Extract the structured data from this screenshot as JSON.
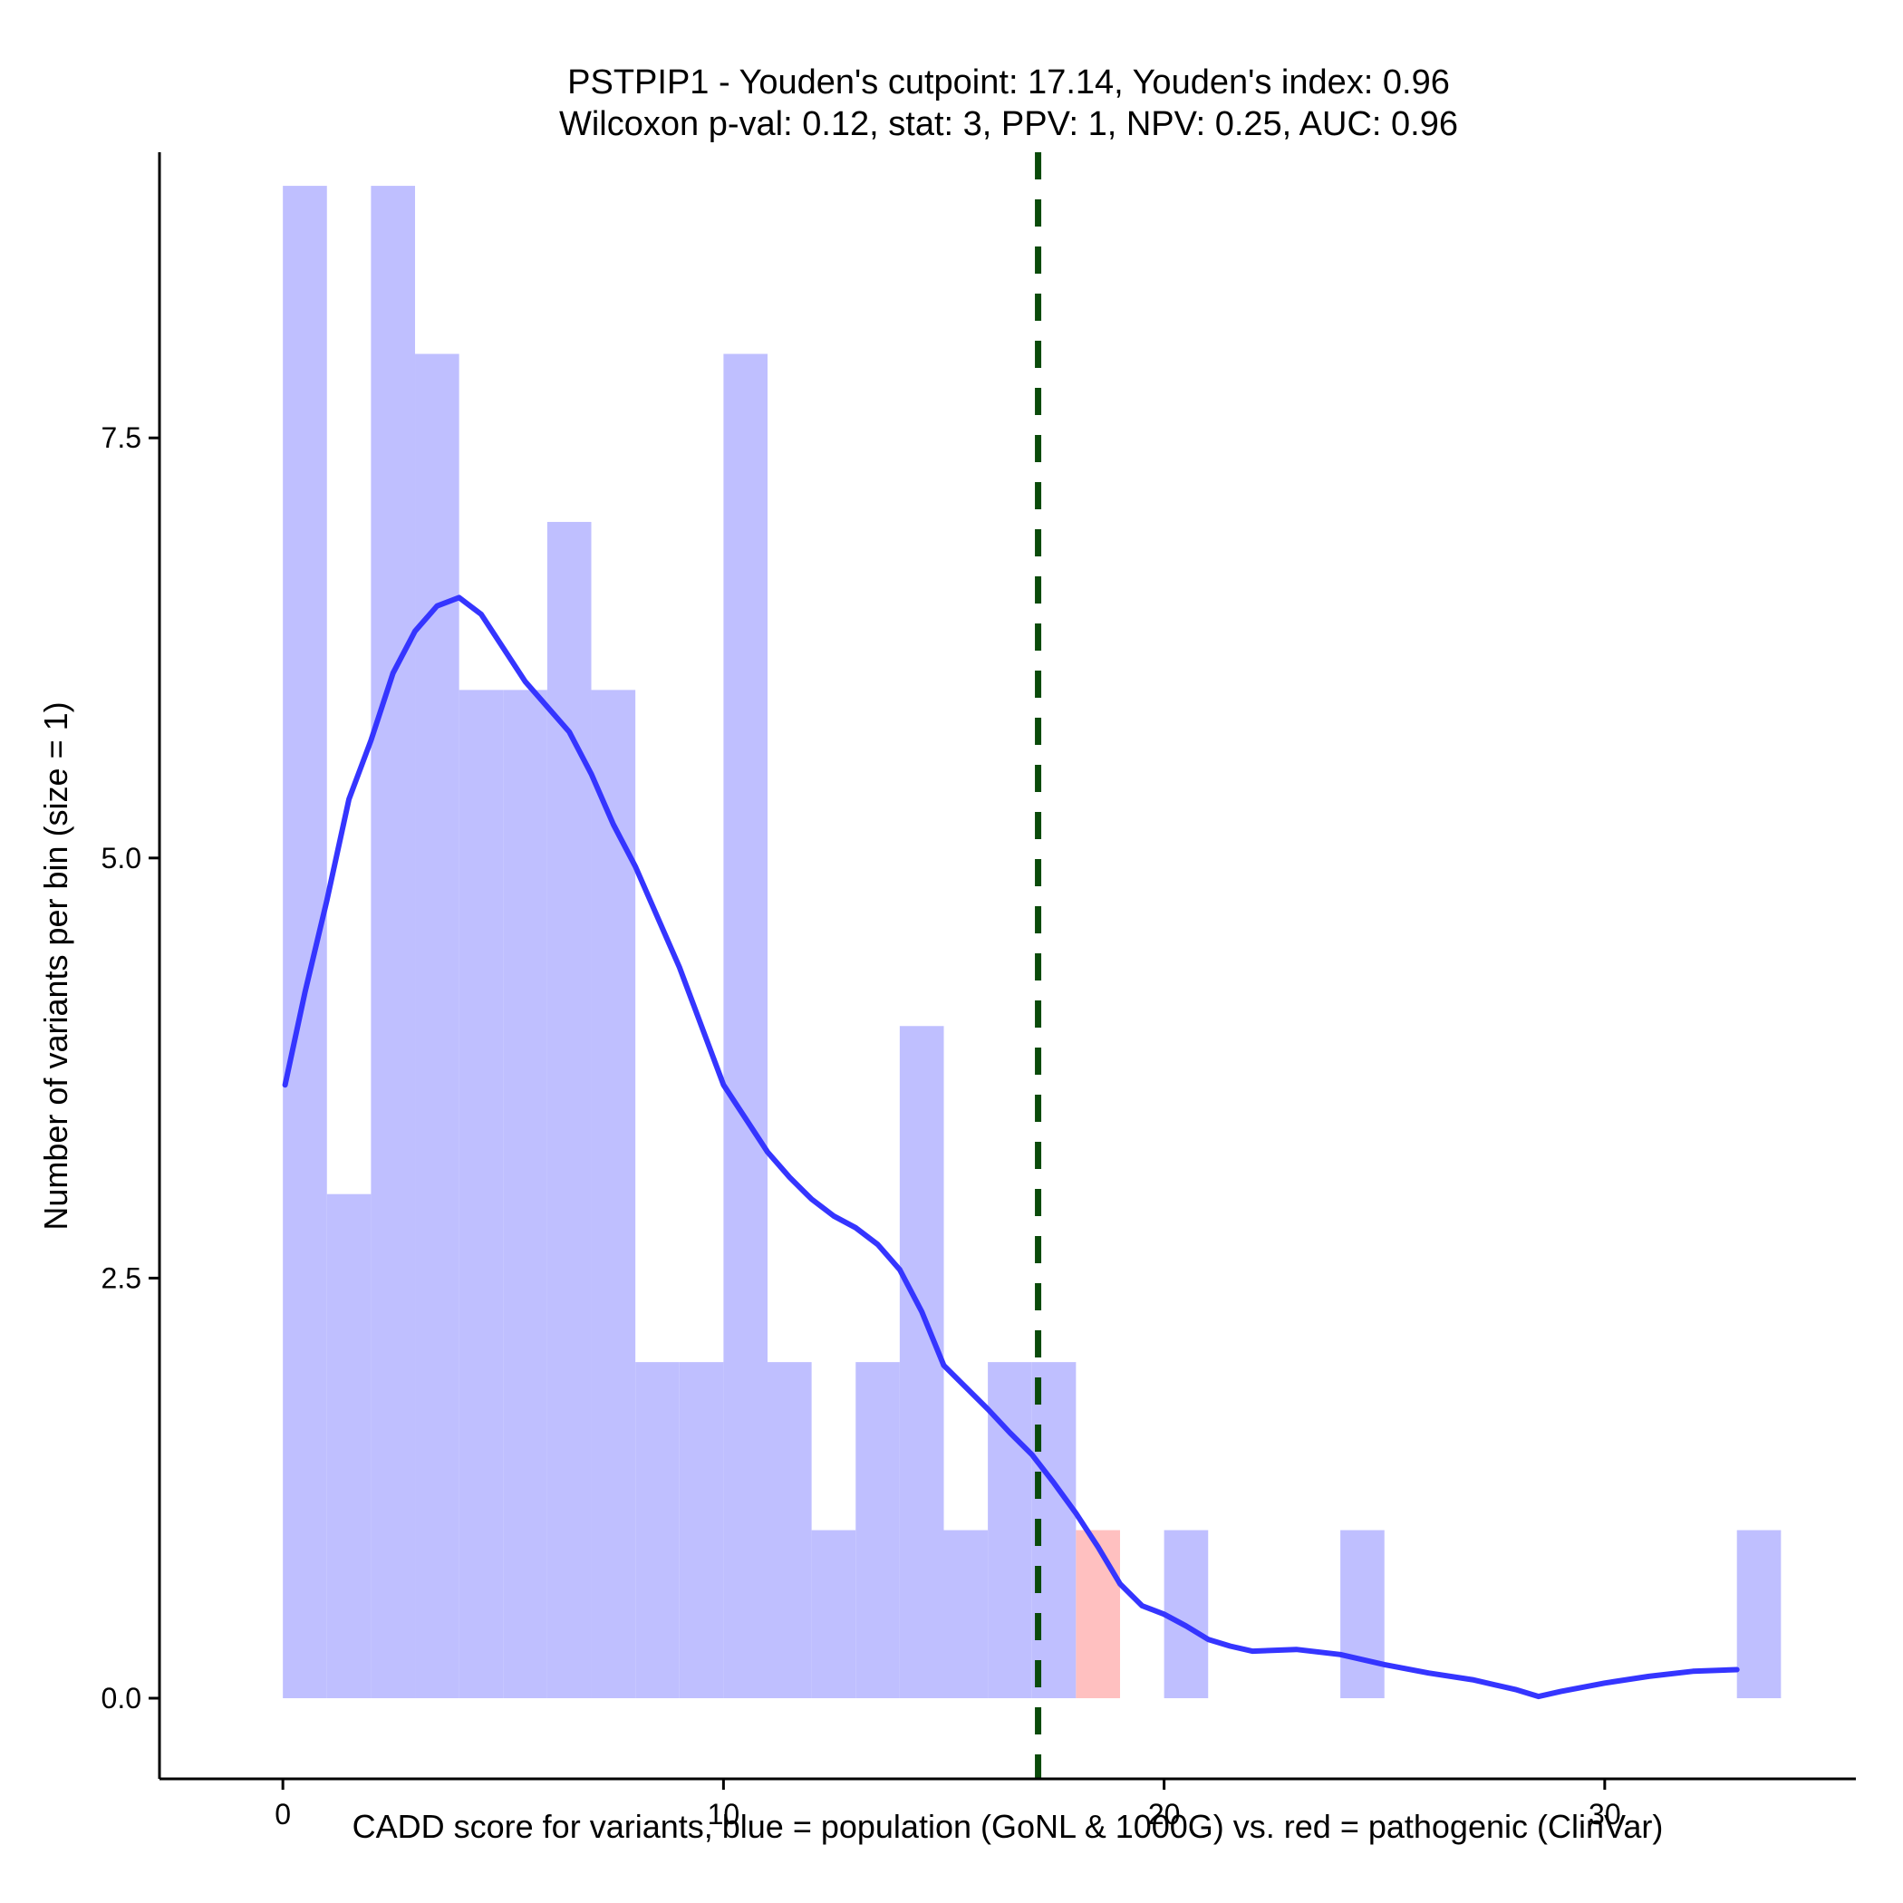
{
  "chart_data": {
    "type": "bar",
    "title": "PSTPIP1 - Youden's cutpoint: 17.14, Youden's index: 0.96",
    "subtitle": "Wilcoxon p-val: 0.12, stat: 3, PPV: 1, NPV: 0.25, AUC: 0.96",
    "xlabel": "CADD score for variants, blue = population (GoNL & 1000G) vs. red = pathogenic (ClinVar)",
    "ylabel": "Number of variants per bin (size = 1)",
    "xlim": [
      -2.8,
      35.7
    ],
    "ylim": [
      -0.48,
      9.2
    ],
    "xticks": [
      0,
      10,
      20,
      30
    ],
    "xtick_labels": [
      "0",
      "10",
      "20",
      "30"
    ],
    "yticks": [
      0,
      2.5,
      5,
      7.5
    ],
    "ytick_labels": [
      "0.0",
      "2.5",
      "5.0",
      "7.5"
    ],
    "bin_width": 1,
    "series": [
      {
        "role": "population",
        "color": "#bfbfff",
        "bins": [
          {
            "x0": 0,
            "count": 9
          },
          {
            "x0": 1,
            "count": 3
          },
          {
            "x0": 2,
            "count": 9
          },
          {
            "x0": 3,
            "count": 8
          },
          {
            "x0": 4,
            "count": 6
          },
          {
            "x0": 5,
            "count": 6
          },
          {
            "x0": 6,
            "count": 7
          },
          {
            "x0": 7,
            "count": 6
          },
          {
            "x0": 8,
            "count": 2
          },
          {
            "x0": 9,
            "count": 2
          },
          {
            "x0": 10,
            "count": 8
          },
          {
            "x0": 11,
            "count": 2
          },
          {
            "x0": 12,
            "count": 1
          },
          {
            "x0": 13,
            "count": 2
          },
          {
            "x0": 14,
            "count": 4
          },
          {
            "x0": 15,
            "count": 1
          },
          {
            "x0": 16,
            "count": 2
          },
          {
            "x0": 17,
            "count": 2
          },
          {
            "x0": 20,
            "count": 1
          },
          {
            "x0": 24,
            "count": 1
          },
          {
            "x0": 33,
            "count": 1
          }
        ]
      },
      {
        "role": "pathogenic",
        "color": "#ffc0c0",
        "bins": [
          {
            "x0": 18,
            "count": 1
          }
        ]
      }
    ],
    "density_line": {
      "color": "#3535ff",
      "points": [
        [
          0.05,
          3.65
        ],
        [
          0.5,
          4.2
        ],
        [
          1.0,
          4.75
        ],
        [
          1.5,
          5.35
        ],
        [
          2.0,
          5.7
        ],
        [
          2.5,
          6.1
        ],
        [
          3.0,
          6.35
        ],
        [
          3.5,
          6.5
        ],
        [
          4.0,
          6.55
        ],
        [
          4.5,
          6.45
        ],
        [
          5.0,
          6.25
        ],
        [
          5.5,
          6.05
        ],
        [
          6.0,
          5.9
        ],
        [
          6.5,
          5.75
        ],
        [
          7.0,
          5.5
        ],
        [
          7.5,
          5.2
        ],
        [
          8.0,
          4.95
        ],
        [
          8.5,
          4.65
        ],
        [
          9.0,
          4.35
        ],
        [
          9.5,
          4.0
        ],
        [
          10.0,
          3.65
        ],
        [
          10.5,
          3.45
        ],
        [
          11.0,
          3.25
        ],
        [
          11.5,
          3.1
        ],
        [
          12.0,
          2.97
        ],
        [
          12.5,
          2.87
        ],
        [
          13.0,
          2.8
        ],
        [
          13.5,
          2.7
        ],
        [
          14.0,
          2.55
        ],
        [
          14.5,
          2.3
        ],
        [
          15.0,
          1.98
        ],
        [
          15.5,
          1.85
        ],
        [
          16.0,
          1.72
        ],
        [
          16.5,
          1.58
        ],
        [
          17.0,
          1.45
        ],
        [
          17.5,
          1.28
        ],
        [
          18.0,
          1.1
        ],
        [
          18.5,
          0.9
        ],
        [
          19.0,
          0.68
        ],
        [
          19.5,
          0.55
        ],
        [
          20.0,
          0.5
        ],
        [
          20.5,
          0.43
        ],
        [
          21.0,
          0.35
        ],
        [
          21.5,
          0.31
        ],
        [
          22.0,
          0.28
        ],
        [
          23.0,
          0.29
        ],
        [
          24.0,
          0.26
        ],
        [
          25.0,
          0.2
        ],
        [
          26.0,
          0.15
        ],
        [
          27.0,
          0.11
        ],
        [
          28.0,
          0.05
        ],
        [
          28.5,
          0.01
        ],
        [
          29.0,
          0.04
        ],
        [
          30.0,
          0.09
        ],
        [
          31.0,
          0.13
        ],
        [
          32.0,
          0.16
        ],
        [
          33.0,
          0.17
        ]
      ]
    },
    "cutpoint": {
      "x": 17.14,
      "color": "#0a4a0a",
      "style": "dashed"
    },
    "grid": false
  }
}
